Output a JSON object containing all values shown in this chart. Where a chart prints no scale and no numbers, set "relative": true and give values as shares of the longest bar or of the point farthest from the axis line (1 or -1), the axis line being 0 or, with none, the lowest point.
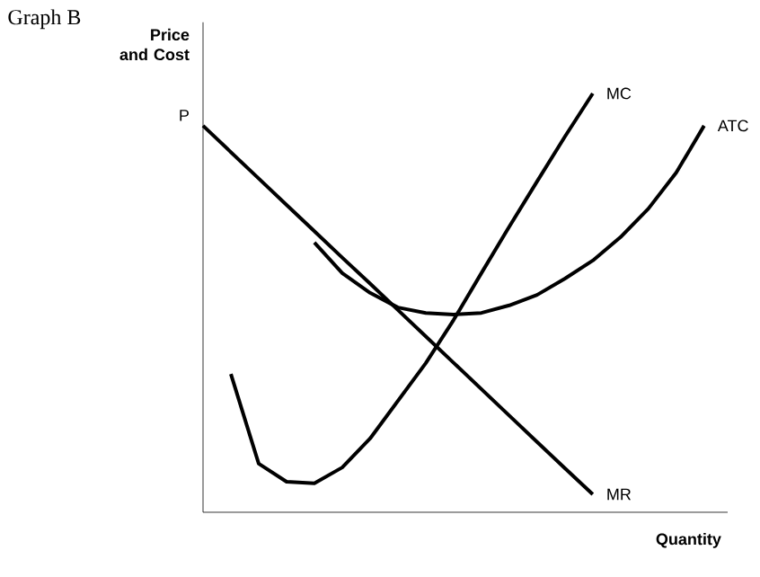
{
  "chart_data": {
    "type": "line",
    "title": "Graph B",
    "ylabel": "Price and Cost",
    "xlabel": "Quantity",
    "relative": true,
    "marker": "none",
    "line_style": "solid",
    "annotations": [
      "P"
    ],
    "categories": [
      null,
      null,
      null,
      null,
      null,
      null,
      null,
      null,
      null,
      null,
      null,
      null,
      null,
      null,
      null,
      null,
      null,
      null,
      null
    ],
    "series": [
      {
        "name": "MC",
        "color": "#000000",
        "values": [
          null,
          0.33,
          0.116,
          0.073,
          0.069,
          0.107,
          0.176,
          0.266,
          0.356,
          0.459,
          0.571,
          0.682,
          0.79,
          0.897,
          1.0,
          null,
          null,
          null,
          null
        ]
      },
      {
        "name": "ATC",
        "color": "#000000",
        "values": [
          null,
          null,
          null,
          null,
          0.644,
          0.571,
          0.524,
          0.489,
          0.476,
          0.472,
          0.476,
          0.494,
          0.519,
          0.558,
          0.601,
          0.657,
          0.725,
          0.811,
          0.923
        ]
      },
      {
        "name": "MR",
        "color": "#000000",
        "values": [
          0.923,
          0.86,
          0.797,
          0.734,
          0.671,
          0.608,
          0.546,
          0.483,
          0.42,
          0.357,
          0.294,
          0.231,
          0.168,
          0.105,
          0.043,
          null,
          null,
          null,
          null
        ]
      }
    ]
  }
}
